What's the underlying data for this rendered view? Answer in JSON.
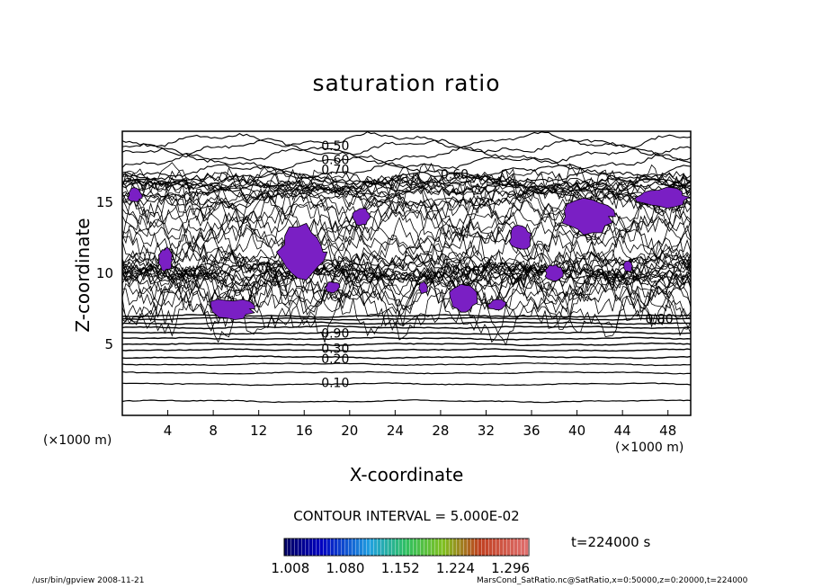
{
  "chart_data": {
    "type": "heatmap",
    "title": "saturation ratio",
    "xlabel": "X-coordinate",
    "ylabel": "Z-coordinate",
    "x_unit": "(×1000 m)",
    "y_unit": "(×1000 m)",
    "xlim": [
      0,
      50
    ],
    "ylim": [
      0,
      20
    ],
    "x_ticks": [
      4,
      8,
      12,
      16,
      20,
      24,
      28,
      32,
      36,
      40,
      44,
      48
    ],
    "y_ticks": [
      5,
      10,
      15
    ],
    "contour_interval_text": "CONTOUR INTERVAL = 5.000E-02",
    "colorbar": {
      "labels": [
        "1.008",
        "1.080",
        "1.152",
        "1.224",
        "1.296"
      ],
      "range": [
        1.0,
        1.32
      ]
    },
    "contour_labels": [
      {
        "text": "0.10",
        "x": 17.5,
        "z": 2.3
      },
      {
        "text": "0.20",
        "x": 17.5,
        "z": 4.0
      },
      {
        "text": "0.30",
        "x": 17.5,
        "z": 4.7
      },
      {
        "text": "0.90",
        "x": 17.5,
        "z": 5.8
      },
      {
        "text": "0.50",
        "x": 17.5,
        "z": 19.0
      },
      {
        "text": "0.60",
        "x": 17.5,
        "z": 18.0
      },
      {
        "text": "0.70",
        "x": 17.5,
        "z": 17.3
      },
      {
        "text": "0.60",
        "x": 28.0,
        "z": 17.0
      },
      {
        "text": "0.90",
        "x": 29.0,
        "z": 10.2
      },
      {
        "text": "0.80",
        "x": 46.0,
        "z": 6.8
      }
    ],
    "supersaturated_regions": [
      {
        "x": 15.8,
        "z": 11.5,
        "rx": 2.0,
        "ry": 1.8
      },
      {
        "x": 9.5,
        "z": 7.5,
        "rx": 2.0,
        "ry": 0.7
      },
      {
        "x": 41.0,
        "z": 14.0,
        "rx": 2.2,
        "ry": 1.2
      },
      {
        "x": 47.5,
        "z": 15.3,
        "rx": 2.3,
        "ry": 0.7
      },
      {
        "x": 30.0,
        "z": 8.3,
        "rx": 1.2,
        "ry": 1.0
      },
      {
        "x": 21.0,
        "z": 14.0,
        "rx": 0.8,
        "ry": 0.6
      },
      {
        "x": 35.0,
        "z": 12.5,
        "rx": 1.0,
        "ry": 0.8
      },
      {
        "x": 38.0,
        "z": 10.0,
        "rx": 0.8,
        "ry": 0.6
      },
      {
        "x": 3.8,
        "z": 11.0,
        "rx": 0.6,
        "ry": 0.8
      },
      {
        "x": 1.1,
        "z": 15.5,
        "rx": 0.6,
        "ry": 0.5
      },
      {
        "x": 33.0,
        "z": 7.8,
        "rx": 0.8,
        "ry": 0.4
      },
      {
        "x": 18.5,
        "z": 9.0,
        "rx": 0.6,
        "ry": 0.4
      },
      {
        "x": 44.5,
        "z": 10.5,
        "rx": 0.4,
        "ry": 0.4
      },
      {
        "x": 26.5,
        "z": 9.0,
        "rx": 0.4,
        "ry": 0.4
      }
    ]
  },
  "time_text": "t=224000 s",
  "footer_left": "/usr/bin/gpview   2008-11-21",
  "footer_right": "MarsCond_SatRatio.nc@SatRatio,x=0:50000,z=0:20000,t=224000"
}
